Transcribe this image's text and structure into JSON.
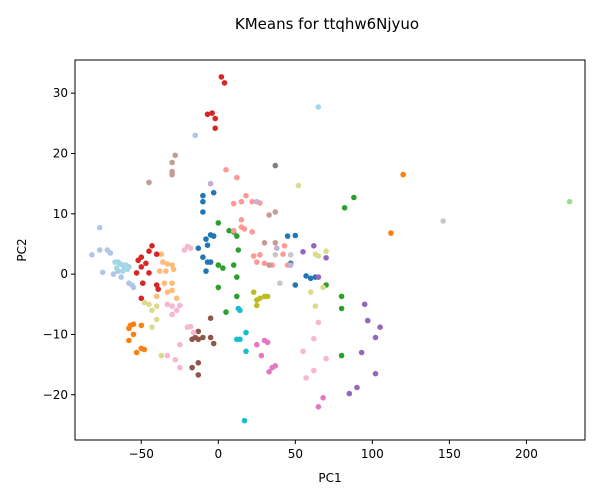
{
  "chart_data": {
    "type": "scatter",
    "title": "KMeans for ttqhw6Njyuo",
    "xlabel": "PC1",
    "ylabel": "PC2",
    "xlim": [
      -93,
      238
    ],
    "ylim": [
      -27.5,
      35.5
    ],
    "xticks": [
      -50,
      0,
      50,
      100,
      150,
      200
    ],
    "yticks": [
      -20,
      -10,
      0,
      10,
      20,
      30
    ],
    "grid": false,
    "legend": "none",
    "series": [
      {
        "color": "#1f77b4",
        "points": [
          [
            -10,
            13
          ],
          [
            -10,
            12
          ],
          [
            -10,
            10.3
          ],
          [
            -3,
            13.5
          ],
          [
            -5,
            6.5
          ],
          [
            -3,
            6.3
          ],
          [
            -8,
            5.8
          ],
          [
            -7,
            4.8
          ],
          [
            -10,
            2.8
          ],
          [
            -7,
            2
          ],
          [
            -5,
            2
          ],
          [
            -8,
            0.5
          ],
          [
            -13,
            4.3
          ],
          [
            45,
            6.3
          ],
          [
            50,
            6.4
          ],
          [
            47,
            1.8
          ],
          [
            50,
            -1.8
          ],
          [
            57,
            -0.3
          ],
          [
            60,
            -0.7
          ],
          [
            63,
            -0.5
          ]
        ]
      },
      {
        "color": "#aec7e8",
        "points": [
          [
            -82,
            3.2
          ],
          [
            -77,
            4
          ],
          [
            -72,
            4
          ],
          [
            -70,
            3.5
          ],
          [
            -65,
            2
          ],
          [
            -62,
            1.5
          ],
          [
            -60,
            1
          ],
          [
            -58,
            1.2
          ],
          [
            -65,
            0.5
          ],
          [
            -75,
            0.3
          ],
          [
            -68,
            0
          ],
          [
            -63,
            -0.5
          ],
          [
            -58,
            -1.5
          ],
          [
            -56,
            -1.8
          ],
          [
            -55,
            -2.2
          ],
          [
            -77,
            7.7
          ],
          [
            -15,
            23
          ],
          [
            -5,
            15
          ]
        ]
      },
      {
        "color": "#ff7f0e",
        "points": [
          [
            -57,
            -8.5
          ],
          [
            -55,
            -8.3
          ],
          [
            -58,
            -9
          ],
          [
            -50,
            -8.5
          ],
          [
            -55,
            -10
          ],
          [
            -58,
            -11
          ],
          [
            -50,
            -12.3
          ],
          [
            -48,
            -12.5
          ],
          [
            -53,
            -13
          ],
          [
            112,
            6.8
          ],
          [
            120,
            16.5
          ]
        ]
      },
      {
        "color": "#ffbb78",
        "points": [
          [
            -35,
            -1.5
          ],
          [
            -30,
            -1.5
          ],
          [
            -33,
            -3
          ],
          [
            -30,
            -2.7
          ],
          [
            -38,
            0.5
          ],
          [
            -34,
            0.5
          ],
          [
            -29,
            0.8
          ],
          [
            -36,
            2
          ],
          [
            -33,
            1.7
          ],
          [
            -30,
            1.5
          ],
          [
            -37,
            3.3
          ],
          [
            -40,
            -3.7
          ],
          [
            -27,
            -4
          ]
        ]
      },
      {
        "color": "#2ca02c",
        "points": [
          [
            0,
            8.5
          ],
          [
            7,
            7.2
          ],
          [
            10,
            7
          ],
          [
            12,
            6.3
          ],
          [
            13,
            4
          ],
          [
            0,
            1.5
          ],
          [
            3,
            1
          ],
          [
            10,
            1.5
          ],
          [
            12,
            -0.5
          ],
          [
            0,
            -2.2
          ],
          [
            12,
            -3.7
          ],
          [
            5,
            -6.3
          ],
          [
            82,
            11
          ],
          [
            88,
            12.7
          ],
          [
            70,
            -1.8
          ],
          [
            80,
            -3.7
          ],
          [
            80,
            -5.7
          ],
          [
            80,
            -13.5
          ]
        ]
      },
      {
        "color": "#98df8a",
        "points": [
          [
            228,
            12
          ]
        ]
      },
      {
        "color": "#d62728",
        "points": [
          [
            -43,
            4.7
          ],
          [
            -45,
            3.8
          ],
          [
            -40,
            3.3
          ],
          [
            -50,
            2.8
          ],
          [
            -52,
            2.3
          ],
          [
            -47,
            1.8
          ],
          [
            -50,
            1.2
          ],
          [
            -53,
            0.2
          ],
          [
            -45,
            0.2
          ],
          [
            -49,
            -1.5
          ],
          [
            -40,
            -1.8
          ],
          [
            -39,
            -2.5
          ],
          [
            -50,
            -4
          ],
          [
            -7,
            26.5
          ],
          [
            -4,
            26.7
          ],
          [
            -2,
            25.8
          ],
          [
            -2,
            24.2
          ],
          [
            2,
            32.7
          ],
          [
            4,
            31.7
          ]
        ]
      },
      {
        "color": "#ff9896",
        "points": [
          [
            5,
            17.3
          ],
          [
            12,
            16
          ],
          [
            10,
            11.7
          ],
          [
            15,
            12
          ],
          [
            18,
            13
          ],
          [
            22,
            12
          ],
          [
            27,
            11.8
          ],
          [
            10,
            7.2
          ],
          [
            15,
            9
          ],
          [
            15,
            7.8
          ],
          [
            17,
            7.5
          ],
          [
            22,
            7
          ],
          [
            23,
            3
          ],
          [
            25,
            2
          ],
          [
            27,
            3.2
          ],
          [
            30,
            1.8
          ],
          [
            35,
            1.5
          ],
          [
            42,
            3.3
          ],
          [
            45,
            1.5
          ],
          [
            43,
            4.7
          ]
        ]
      },
      {
        "color": "#9467bd",
        "points": [
          [
            55,
            3.7
          ],
          [
            62,
            4.7
          ],
          [
            65,
            -0.5
          ],
          [
            70,
            2.7
          ],
          [
            95,
            -5
          ],
          [
            97,
            -7.7
          ],
          [
            105,
            -8.8
          ],
          [
            102,
            -10.5
          ],
          [
            93,
            -13
          ],
          [
            102,
            -16.5
          ],
          [
            90,
            -18.8
          ],
          [
            85,
            -19.8
          ]
        ]
      },
      {
        "color": "#c5b0d5",
        "points": [
          [
            -5,
            15
          ],
          [
            25,
            12
          ],
          [
            47,
            1.5
          ],
          [
            38,
            4.3
          ]
        ]
      },
      {
        "color": "#8c564b",
        "points": [
          [
            -13,
            -9.5
          ],
          [
            -10,
            -10.5
          ],
          [
            -15,
            -10.5
          ],
          [
            -13,
            -10.8
          ],
          [
            -17,
            -10.8
          ],
          [
            -5,
            -10.5
          ],
          [
            -3,
            -11.5
          ],
          [
            -13,
            -14.7
          ],
          [
            -17,
            -15.5
          ],
          [
            -13,
            -16.7
          ],
          [
            -5,
            -7.3
          ]
        ]
      },
      {
        "color": "#c49c94",
        "points": [
          [
            -28,
            19.7
          ],
          [
            -30,
            18.5
          ],
          [
            -30,
            17
          ],
          [
            -30,
            16.5
          ],
          [
            -45,
            15.2
          ],
          [
            33,
            9.8
          ],
          [
            37,
            10.3
          ],
          [
            30,
            5.2
          ],
          [
            37,
            5.2
          ],
          [
            33,
            1.5
          ]
        ]
      },
      {
        "color": "#e377c2",
        "points": [
          [
            25,
            -11.7
          ],
          [
            30,
            -11
          ],
          [
            32,
            -11.3
          ],
          [
            28,
            -13.5
          ],
          [
            35,
            -15.5
          ],
          [
            37,
            -15.2
          ],
          [
            33,
            -16.2
          ],
          [
            65,
            -22
          ],
          [
            68,
            -20.5
          ]
        ]
      },
      {
        "color": "#f7b6d2",
        "points": [
          [
            -22,
            4
          ],
          [
            -20,
            4.6
          ],
          [
            -18,
            4.3
          ],
          [
            -33,
            -5
          ],
          [
            -30,
            -5.3
          ],
          [
            -27,
            -6
          ],
          [
            -30,
            -6.7
          ],
          [
            -25,
            -5.2
          ],
          [
            -20,
            -8.8
          ],
          [
            -16,
            -9.7
          ],
          [
            -18,
            -8.7
          ],
          [
            -33,
            -13.5
          ],
          [
            -28,
            -14.2
          ],
          [
            -25,
            -15.5
          ],
          [
            -25,
            -11.7
          ],
          [
            55,
            -12.8
          ],
          [
            62,
            -10.7
          ],
          [
            65,
            -8
          ],
          [
            70,
            -14
          ],
          [
            57,
            -17.2
          ],
          [
            62,
            -16
          ]
        ]
      },
      {
        "color": "#7f7f7f",
        "points": [
          [
            37,
            18
          ]
        ]
      },
      {
        "color": "#c7c7c7",
        "points": [
          [
            47,
            3.2
          ],
          [
            37,
            3.2
          ],
          [
            40,
            -1.5
          ],
          [
            146,
            8.8
          ]
        ]
      },
      {
        "color": "#bcbd22",
        "points": [
          [
            23,
            -3
          ],
          [
            30,
            -3.7
          ],
          [
            27,
            -4
          ],
          [
            25,
            -4.3
          ],
          [
            25,
            -5.2
          ],
          [
            32,
            -3.7
          ]
        ]
      },
      {
        "color": "#dbdb8d",
        "points": [
          [
            -48,
            -4.7
          ],
          [
            -45,
            -5
          ],
          [
            -40,
            -5.3
          ],
          [
            -43,
            -6
          ],
          [
            -40,
            -7.5
          ],
          [
            -43,
            -8.8
          ],
          [
            -37,
            -13.5
          ],
          [
            52,
            14.7
          ],
          [
            63,
            3.3
          ],
          [
            65,
            3
          ],
          [
            70,
            3.8
          ],
          [
            68,
            -2.2
          ],
          [
            63,
            -5.3
          ],
          [
            60,
            -3
          ]
        ]
      },
      {
        "color": "#17becf",
        "points": [
          [
            12,
            -10.8
          ],
          [
            14,
            -10.8
          ],
          [
            13,
            -5.7
          ],
          [
            14,
            -6
          ],
          [
            18,
            -9.7
          ],
          [
            18,
            -12.8
          ],
          [
            17,
            -24.3
          ]
        ]
      },
      {
        "color": "#9edae5",
        "points": [
          [
            -67,
            2
          ],
          [
            -64,
            1.7
          ],
          [
            -60,
            1.5
          ],
          [
            -66,
            1
          ],
          [
            -62,
            0.5
          ],
          [
            -59,
            0.8
          ],
          [
            65,
            27.7
          ]
        ]
      }
    ]
  }
}
